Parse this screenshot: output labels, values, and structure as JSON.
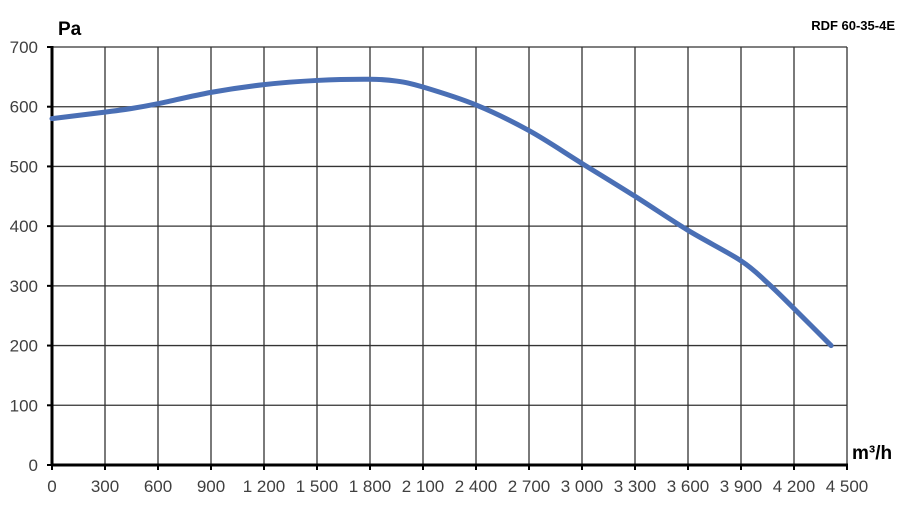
{
  "chart_data": {
    "type": "line",
    "title": "RDF 60-35-4E",
    "xlabel": "m³/h",
    "ylabel": "Pa",
    "xlim": [
      0,
      4500
    ],
    "ylim": [
      0,
      700
    ],
    "grid": true,
    "x_ticks": [
      "0",
      "300",
      "600",
      "900",
      "1 200",
      "1 500",
      "1 800",
      "2 100",
      "2 400",
      "2 700",
      "3 000",
      "3 300",
      "3 600",
      "3 900",
      "4 200",
      "4 500"
    ],
    "y_ticks": [
      "0",
      "100",
      "200",
      "300",
      "400",
      "500",
      "600",
      "700"
    ],
    "series": [
      {
        "color": "#4a6fb5",
        "x": [
          0,
          300,
          450,
          600,
          900,
          1200,
          1500,
          1800,
          1950,
          2100,
          2400,
          2700,
          3000,
          3300,
          3600,
          3900,
          4050,
          4200,
          4410
        ],
        "y": [
          580,
          591,
          597,
          605,
          624,
          637,
          644,
          646,
          643,
          633,
          603,
          560,
          505,
          450,
          393,
          342,
          305,
          262,
          200
        ]
      }
    ]
  }
}
